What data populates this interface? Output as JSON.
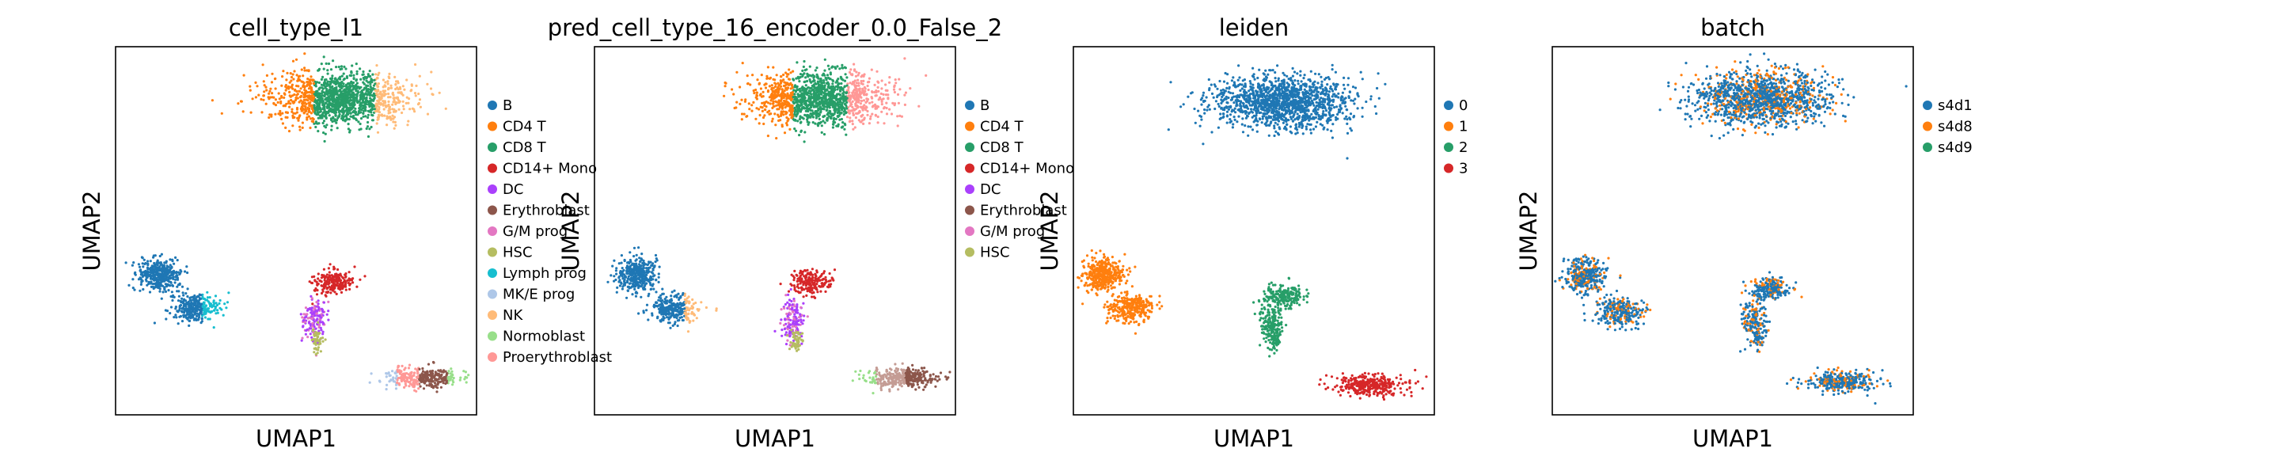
{
  "chart_data": [
    {
      "type": "scatter",
      "title": "cell_type_l1",
      "xlabel": "UMAP1",
      "ylabel": "UMAP2",
      "grid": false,
      "legend_placement": "right",
      "legend": [
        {
          "label": "B",
          "color": "#1f77b4"
        },
        {
          "label": "CD4 T",
          "color": "#ff7f0e"
        },
        {
          "label": "CD8 T",
          "color": "#279e68"
        },
        {
          "label": "CD14+ Mono",
          "color": "#d62728"
        },
        {
          "label": "DC",
          "color": "#aa40fc"
        },
        {
          "label": "Erythroblast",
          "color": "#8c564b"
        },
        {
          "label": "G/M prog",
          "color": "#e377c2"
        },
        {
          "label": "HSC",
          "color": "#b5bd61"
        },
        {
          "label": "Lymph prog",
          "color": "#17becf"
        },
        {
          "label": "MK/E prog",
          "color": "#aec7e8"
        },
        {
          "label": "NK",
          "color": "#ffbb78"
        },
        {
          "label": "Normoblast",
          "color": "#98df8a"
        },
        {
          "label": "Proerythroblast",
          "color": "#ff9896"
        }
      ]
    },
    {
      "type": "scatter",
      "title": "pred_cell_type_16_encoder_0.0_False_2",
      "xlabel": "UMAP1",
      "ylabel": "UMAP2",
      "grid": false,
      "legend_placement": "right",
      "legend": [
        {
          "label": "B",
          "color": "#1f77b4"
        },
        {
          "label": "CD4 T",
          "color": "#ff7f0e"
        },
        {
          "label": "CD8 T",
          "color": "#279e68"
        },
        {
          "label": "CD14+ Mono",
          "color": "#d62728"
        },
        {
          "label": "DC",
          "color": "#aa40fc"
        },
        {
          "label": "Erythroblast",
          "color": "#8c564b"
        },
        {
          "label": "G/M prog",
          "color": "#e377c2"
        },
        {
          "label": "HSC",
          "color": "#b5bd61"
        }
      ]
    },
    {
      "type": "scatter",
      "title": "leiden",
      "xlabel": "UMAP1",
      "ylabel": "UMAP2",
      "grid": false,
      "legend_placement": "right",
      "legend": [
        {
          "label": "0",
          "color": "#1f77b4"
        },
        {
          "label": "1",
          "color": "#ff7f0e"
        },
        {
          "label": "2",
          "color": "#279e68"
        },
        {
          "label": "3",
          "color": "#d62728"
        }
      ]
    },
    {
      "type": "scatter",
      "title": "batch",
      "xlabel": "UMAP1",
      "ylabel": "UMAP2",
      "grid": false,
      "legend_placement": "right",
      "legend": [
        {
          "label": "s4d1",
          "color": "#1f77b4"
        },
        {
          "label": "s4d8",
          "color": "#ff7f0e"
        },
        {
          "label": "s4d9",
          "color": "#279e68"
        }
      ]
    }
  ]
}
